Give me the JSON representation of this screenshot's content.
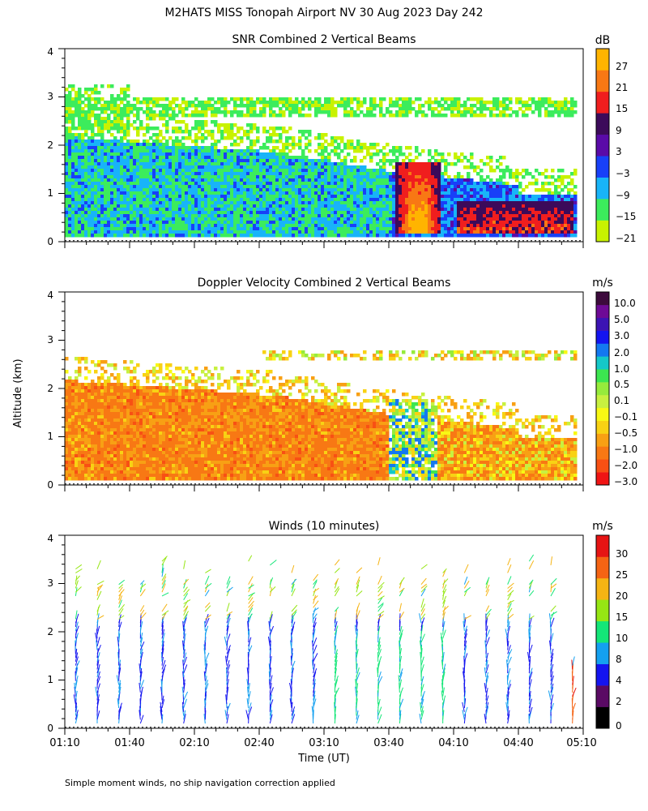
{
  "main_title": "M2HATS MISS Tonopah Airport NV  30 Aug 2023 Day 242",
  "ylabel": "Altitude (km)",
  "xlabel": "Time (UT)",
  "footnote": "Simple moment winds, no ship navigation correction applied",
  "colors": {
    "snr": [
      "#c8f200",
      "#3cec5c",
      "#18b4f8",
      "#1840f8",
      "#5a0aa8",
      "#3c0a5a",
      "#f01e1e",
      "#f87814",
      "#ffb400"
    ],
    "vel": [
      "#f01414",
      "#f85014",
      "#f87814",
      "#f8a014",
      "#f8d214",
      "#f8f814",
      "#c8f040",
      "#96eb3c",
      "#3ce650",
      "#14c8c8",
      "#1478f0",
      "#1414f0",
      "#3c14b4",
      "#6e0a96",
      "#3c0a3c"
    ],
    "wind": [
      "#000000",
      "#5a0a64",
      "#1414f0",
      "#14a0f0",
      "#14e678",
      "#96e614",
      "#f5b414",
      "#f56414",
      "#e61414"
    ]
  },
  "chart_data": [
    {
      "type": "heatmap",
      "title": "SNR Combined 2 Vertical Beams",
      "xlabel": "Time (UT)",
      "ylabel": "Altitude (km)",
      "x_range": [
        "01:10",
        "05:10"
      ],
      "ylim": [
        0,
        4
      ],
      "y_ticks": [
        "0",
        "1",
        "2",
        "3",
        "4"
      ],
      "colorbar_unit": "dB",
      "colorbar_ticks": [
        "27",
        "21",
        "15",
        "9",
        "3",
        "−3",
        "−9",
        "−15",
        "−21"
      ],
      "features": [
        {
          "name": "boundary layer echo",
          "time_range": [
            "01:10",
            "04:00"
          ],
          "top_km_start": 2.2,
          "top_km_end": 1.0,
          "snr_db": [
            -15,
            -6
          ]
        },
        {
          "name": "cloud base layer",
          "time_range": [
            "01:10",
            "05:05"
          ],
          "alt_km": [
            2.7,
            3.0
          ],
          "snr_db": [
            -21,
            -12
          ]
        },
        {
          "name": "strong echo core",
          "time_range": [
            "03:43",
            "04:03"
          ],
          "alt_km": [
            0.2,
            1.7
          ],
          "snr_db": [
            9,
            30
          ]
        },
        {
          "name": "strong near-surface echo",
          "time_range": [
            "04:10",
            "05:05"
          ],
          "alt_km": [
            0.2,
            0.8
          ],
          "snr_db": [
            9,
            27
          ]
        }
      ]
    },
    {
      "type": "heatmap",
      "title": "Doppler Velocity Combined 2 Vertical Beams",
      "xlabel": "Time (UT)",
      "ylabel": "Altitude (km)",
      "x_range": [
        "01:10",
        "05:10"
      ],
      "ylim": [
        0,
        4
      ],
      "y_ticks": [
        "0",
        "1",
        "2",
        "3",
        "4"
      ],
      "colorbar_unit": "m/s",
      "colorbar_ticks": [
        "10.0",
        "5.0",
        "3.0",
        "2.0",
        "1.0",
        "0.5",
        "0.1",
        "−0.1",
        "−0.5",
        "−1.0",
        "−2.0",
        "−3.0"
      ],
      "features": [
        {
          "name": "downward motion below 2 km",
          "time_range": [
            "01:10",
            "03:40"
          ],
          "velocity_ms": [
            -1.0,
            -0.5
          ]
        },
        {
          "name": "mixed updrafts near echo core",
          "time_range": [
            "03:43",
            "04:05"
          ],
          "velocity_ms": [
            0.5,
            3.0
          ]
        },
        {
          "name": "layer near 2.7 km",
          "time_range": [
            "02:55",
            "05:05"
          ],
          "velocity_ms": [
            -0.5,
            0.5
          ]
        }
      ]
    },
    {
      "type": "barbs",
      "title": "Winds (10 minutes)",
      "xlabel": "Time (UT)",
      "ylabel": "Altitude (km)",
      "x_ticks": [
        "01:10",
        "01:40",
        "02:10",
        "02:40",
        "03:10",
        "03:40",
        "04:10",
        "04:40",
        "05:10"
      ],
      "ylim": [
        0,
        4
      ],
      "y_ticks": [
        "0",
        "1",
        "2",
        "3",
        "4"
      ],
      "colorbar_unit": "m/s",
      "colorbar_ticks": [
        "30",
        "25",
        "20",
        "15",
        "10",
        "8",
        "4",
        "2",
        "0"
      ],
      "interval_minutes": 10,
      "features": [
        {
          "name": "light winds in lower layers",
          "alt_km": [
            0,
            2.2
          ],
          "speed_ms": [
            2,
            8
          ]
        },
        {
          "name": "stronger winds aloft",
          "alt_km": [
            2.5,
            3.5
          ],
          "speed_ms": [
            10,
            25
          ]
        },
        {
          "name": "strong winds near surface late",
          "time_range": [
            "04:55",
            "05:05"
          ],
          "alt_km": [
            0,
            1.3
          ],
          "speed_ms": [
            20,
            30
          ]
        }
      ]
    }
  ]
}
